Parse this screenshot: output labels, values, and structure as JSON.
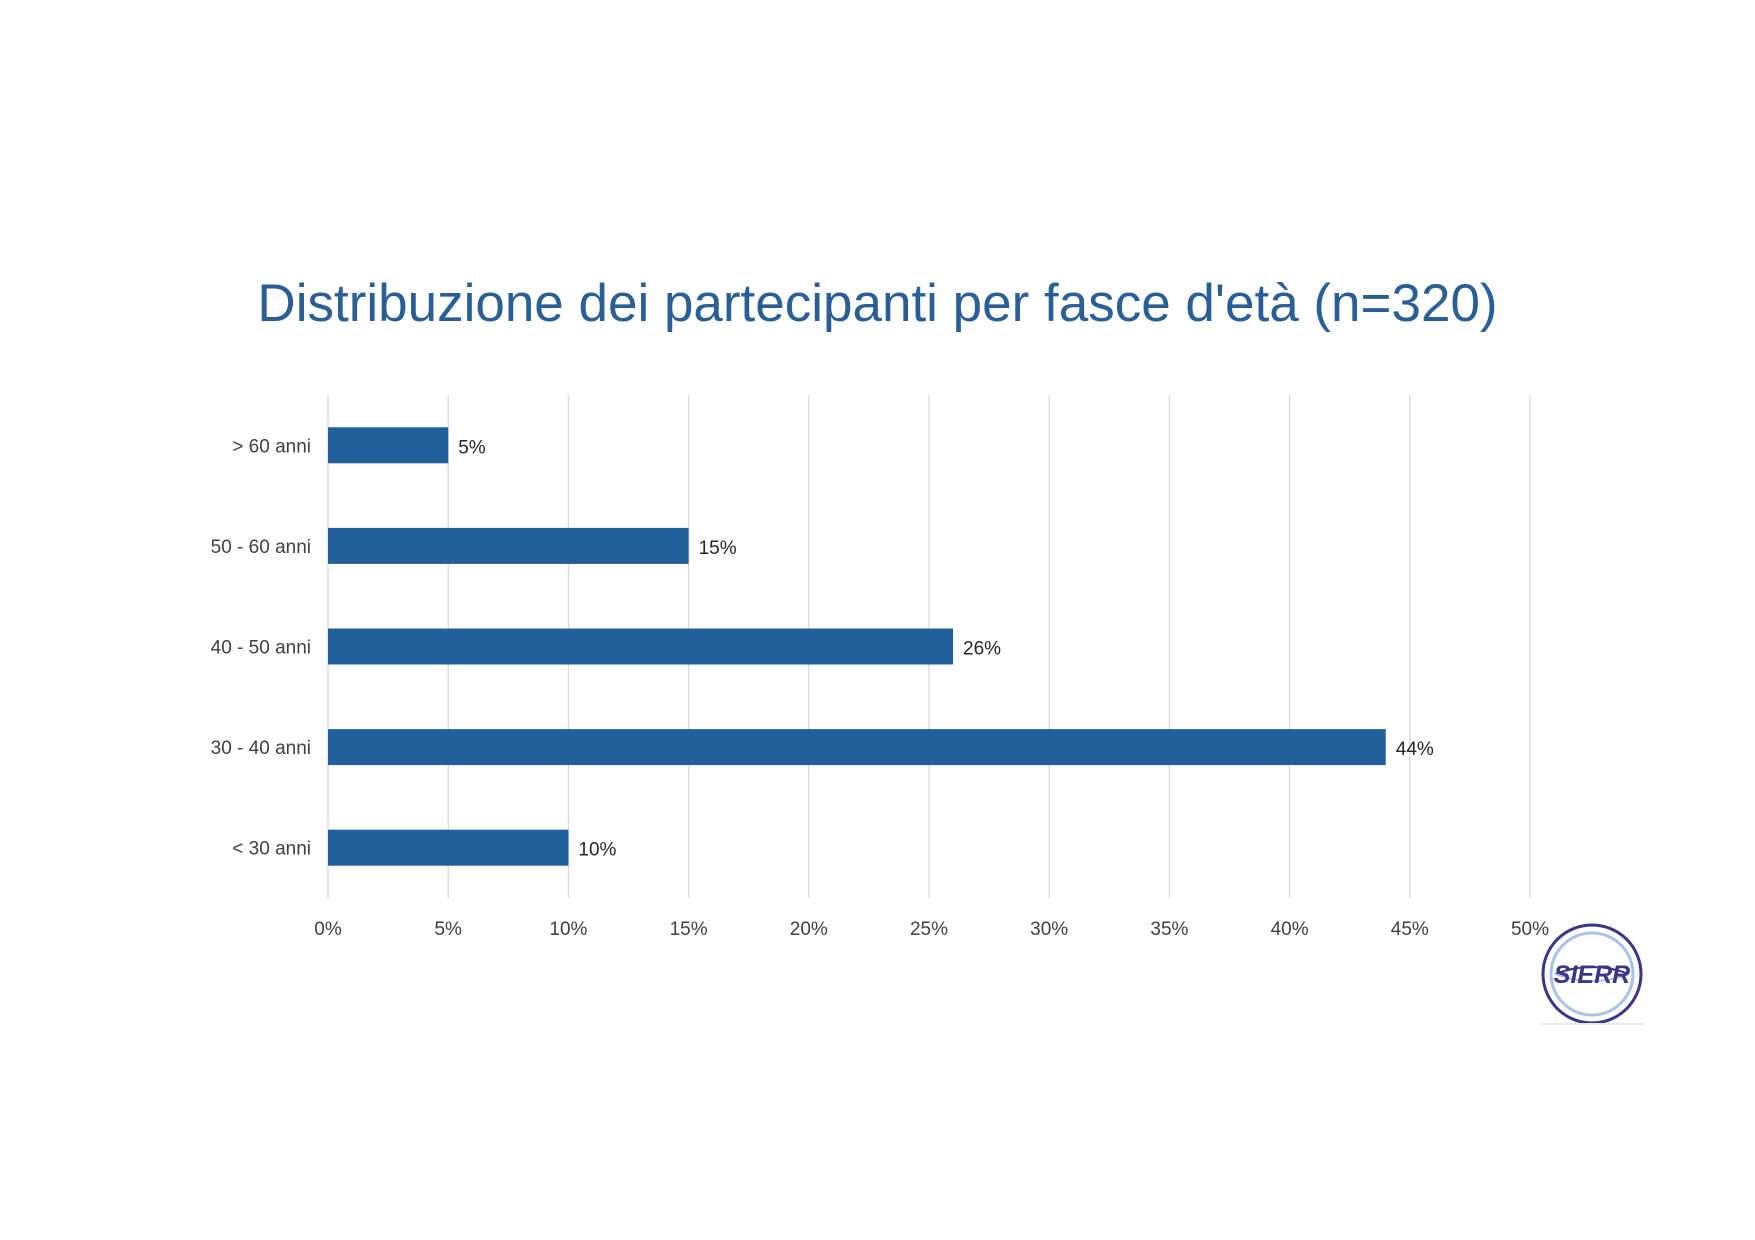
{
  "chart_data": {
    "type": "bar",
    "orientation": "horizontal",
    "title": "Distribuzione dei partecipanti per fasce d'età (n=320)",
    "categories": [
      "> 60 anni",
      "50 - 60 anni",
      "40 - 50 anni",
      "30 - 40 anni",
      "< 30 anni"
    ],
    "values": [
      5,
      15,
      26,
      44,
      10
    ],
    "data_labels": [
      "5%",
      "15%",
      "26%",
      "44%",
      "10%"
    ],
    "xlim": [
      0,
      50
    ],
    "x_ticks": [
      0,
      5,
      10,
      15,
      20,
      25,
      30,
      35,
      40,
      45,
      50
    ],
    "x_tick_labels": [
      "0%",
      "5%",
      "10%",
      "15%",
      "20%",
      "25%",
      "30%",
      "35%",
      "40%",
      "45%",
      "50%"
    ],
    "xlabel": "",
    "ylabel": "",
    "grid": "vertical",
    "legend": "none",
    "bar_color": "#23609b",
    "title_color": "#2a5e96",
    "grid_color": "#d9d9d9",
    "label_color": "#404040"
  },
  "logo": {
    "text": "SIERR",
    "icon": "sierr-logo-icon"
  }
}
